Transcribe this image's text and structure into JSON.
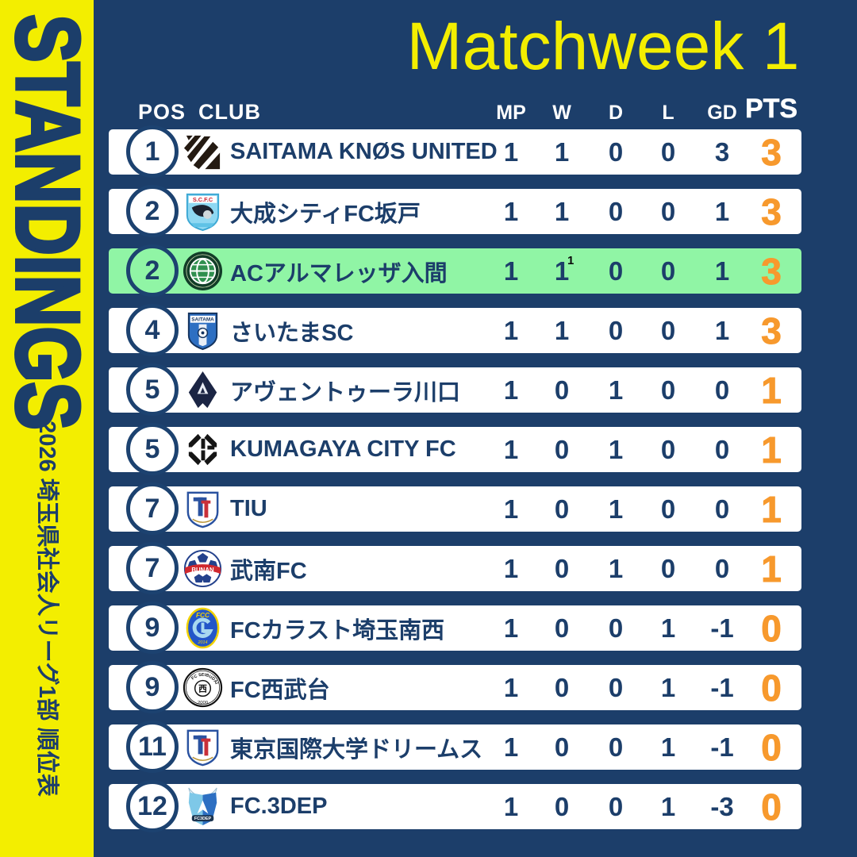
{
  "colors": {
    "background_navy": "#1C3E6A",
    "sidebar_yellow": "#F3EE00",
    "title_yellow": "#F3EE00",
    "accent_orange_pts": "#F7992D",
    "highlight_green": "#90F5A5",
    "row_white": "#FFFFFF",
    "navy_text": "#1C3E6A",
    "header_text": "#FFFFFF"
  },
  "sidebar": {
    "title": "STANDINGS",
    "subtitle": "2026 埼玉県社会人リーグ1部 順位表"
  },
  "header": {
    "title": "Matchweek 1"
  },
  "table": {
    "columns": {
      "pos": "POS",
      "club": "CLUB",
      "mp": "MP",
      "w": "W",
      "d": "D",
      "l": "L",
      "gd": "GD",
      "pts": "PTS"
    },
    "rows": [
      {
        "pos": "1",
        "club": "SAITAMA KNØS UNITED",
        "logo": "saitama-knos-united-logo",
        "mp": "1",
        "w": "1",
        "d": "0",
        "l": "0",
        "gd": "3",
        "pts": "3",
        "highlighted": false
      },
      {
        "pos": "2",
        "club": "大成シティFC坂戸",
        "logo": "taisei-city-fc-sakado-logo",
        "mp": "1",
        "w": "1",
        "d": "0",
        "l": "0",
        "gd": "1",
        "pts": "3",
        "highlighted": false
      },
      {
        "pos": "2",
        "club": "ACアルマレッザ入間",
        "logo": "ac-almarezza-iruma-logo",
        "mp": "1",
        "w": "1",
        "d": "0",
        "l": "0",
        "gd": "1",
        "pts": "3",
        "highlighted": true,
        "stray_mark": "1"
      },
      {
        "pos": "4",
        "club": "さいたまSC",
        "logo": "saitama-sc-logo",
        "mp": "1",
        "w": "1",
        "d": "0",
        "l": "0",
        "gd": "1",
        "pts": "3",
        "highlighted": false
      },
      {
        "pos": "5",
        "club": "アヴェントゥーラ川口",
        "logo": "aventura-kawaguchi-logo",
        "mp": "1",
        "w": "0",
        "d": "1",
        "l": "0",
        "gd": "0",
        "pts": "1",
        "highlighted": false
      },
      {
        "pos": "5",
        "club": "KUMAGAYA CITY FC",
        "logo": "kumagaya-city-fc-logo",
        "mp": "1",
        "w": "0",
        "d": "1",
        "l": "0",
        "gd": "0",
        "pts": "1",
        "highlighted": false
      },
      {
        "pos": "7",
        "club": "TIU",
        "logo": "tiu-logo",
        "mp": "1",
        "w": "0",
        "d": "1",
        "l": "0",
        "gd": "0",
        "pts": "1",
        "highlighted": false
      },
      {
        "pos": "7",
        "club": "武南FC",
        "logo": "bunan-fc-logo",
        "mp": "1",
        "w": "0",
        "d": "1",
        "l": "0",
        "gd": "0",
        "pts": "1",
        "highlighted": false
      },
      {
        "pos": "9",
        "club": "FCカラスト埼玉南西",
        "logo": "fc-carast-saitama-nansei-logo",
        "mp": "1",
        "w": "0",
        "d": "0",
        "l": "1",
        "gd": "-1",
        "pts": "0",
        "highlighted": false
      },
      {
        "pos": "9",
        "club": "FC西武台",
        "logo": "fc-seibudai-logo",
        "mp": "1",
        "w": "0",
        "d": "0",
        "l": "1",
        "gd": "-1",
        "pts": "0",
        "highlighted": false
      },
      {
        "pos": "11",
        "club": "東京国際大学ドリームス",
        "logo": "tokyo-international-university-dreams-logo",
        "mp": "1",
        "w": "0",
        "d": "0",
        "l": "1",
        "gd": "-1",
        "pts": "0",
        "highlighted": false
      },
      {
        "pos": "12",
        "club": "FC.3DEP",
        "logo": "fc-3dep-logo",
        "mp": "1",
        "w": "0",
        "d": "0",
        "l": "1",
        "gd": "-3",
        "pts": "0",
        "highlighted": false
      }
    ]
  },
  "chart_data": {
    "type": "table",
    "title": "Matchweek 1",
    "subtitle": "2026 埼玉県社会人リーグ1部 順位表 (STANDINGS)",
    "columns": [
      "POS",
      "CLUB",
      "MP",
      "W",
      "D",
      "L",
      "GD",
      "PTS"
    ],
    "rows": [
      [
        "1",
        "SAITAMA KNØS UNITED",
        "1",
        "1",
        "0",
        "0",
        "3",
        "3"
      ],
      [
        "2",
        "大成シティFC坂戸",
        "1",
        "1",
        "0",
        "0",
        "1",
        "3"
      ],
      [
        "2",
        "ACアルマレッザ入間",
        "1",
        "1",
        "0",
        "0",
        "1",
        "3"
      ],
      [
        "4",
        "さいたまSC",
        "1",
        "1",
        "0",
        "0",
        "1",
        "3"
      ],
      [
        "5",
        "アヴェントゥーラ川口",
        "1",
        "0",
        "1",
        "0",
        "0",
        "1"
      ],
      [
        "5",
        "KUMAGAYA CITY FC",
        "1",
        "0",
        "1",
        "0",
        "0",
        "1"
      ],
      [
        "7",
        "TIU",
        "1",
        "0",
        "1",
        "0",
        "0",
        "1"
      ],
      [
        "7",
        "武南FC",
        "1",
        "0",
        "1",
        "0",
        "0",
        "1"
      ],
      [
        "9",
        "FCカラスト埼玉南西",
        "1",
        "0",
        "0",
        "1",
        "-1",
        "0"
      ],
      [
        "9",
        "FC西武台",
        "1",
        "0",
        "0",
        "1",
        "-1",
        "0"
      ],
      [
        "11",
        "東京国際大学ドリームス",
        "1",
        "0",
        "0",
        "1",
        "-1",
        "0"
      ],
      [
        "12",
        "FC.3DEP",
        "1",
        "0",
        "0",
        "1",
        "-3",
        "0"
      ]
    ],
    "layout": {
      "highlighted_row_index": 2,
      "highlight_color": "#90F5A5",
      "pts_color": "#F7992D"
    }
  }
}
